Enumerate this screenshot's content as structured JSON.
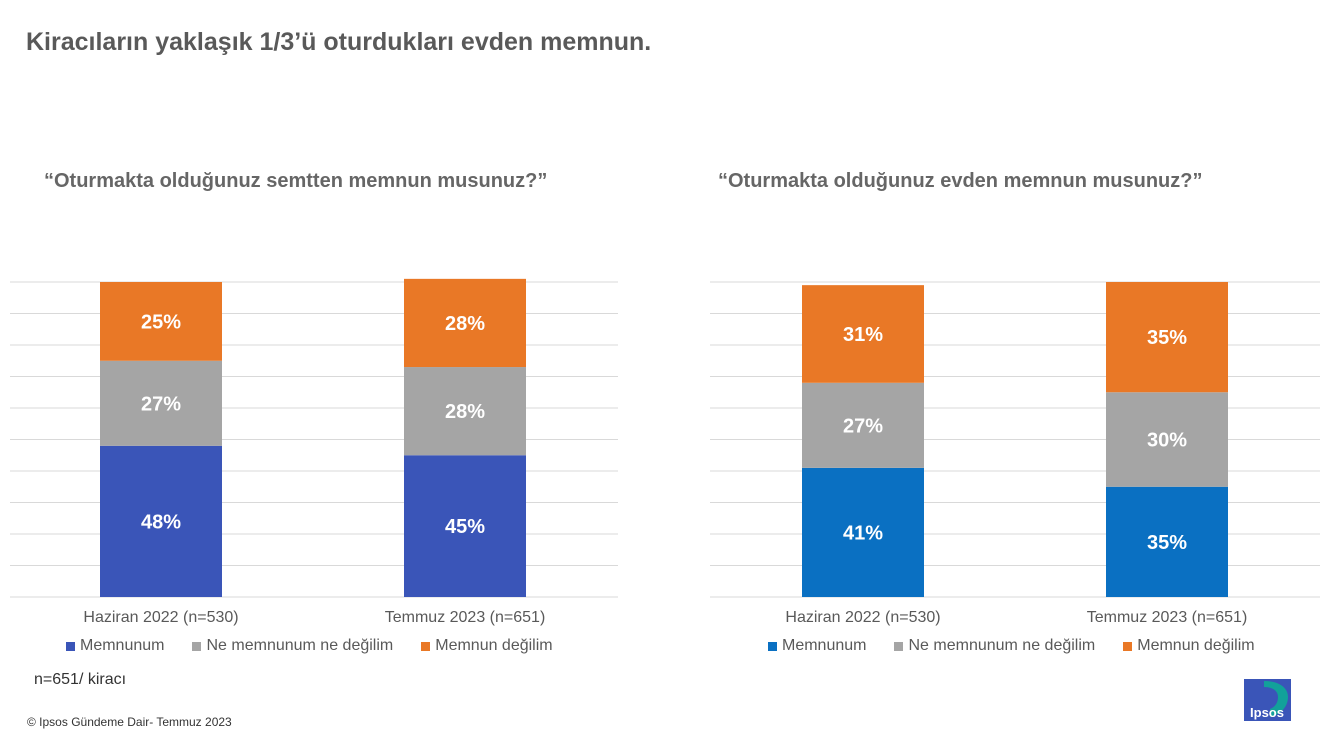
{
  "page": {
    "title": "Kiracıların yaklaşık 1/3’ü oturdukları evden memnun.",
    "note": "n=651/ kiracı",
    "footer": "© Ipsos Gündeme Dair- Temmuz 2023",
    "logo_text": "Ipsos"
  },
  "colors": {
    "memnunum_left": "#3A55B8",
    "memnunum_right": "#0A70C2",
    "neutral": "#A5A5A5",
    "memnun_degil": "#E97826",
    "gridline": "#D9D9D9",
    "logo_dark": "#3A55B8",
    "logo_teal": "#12A19A"
  },
  "chart_data": [
    {
      "type": "bar",
      "stacked": true,
      "title": "“Oturmakta olduğunuz semtten memnun musunuz?”",
      "categories": [
        "Haziran 2022 (n=530)",
        "Temmuz 2023 (n=651)"
      ],
      "ylim": [
        0,
        100
      ],
      "series": [
        {
          "name": "Memnunum",
          "values": [
            48,
            45
          ],
          "labels": [
            "48%",
            "45%"
          ]
        },
        {
          "name": "Ne memnunum ne değilim",
          "values": [
            27,
            28
          ],
          "labels": [
            "27%",
            "28%"
          ]
        },
        {
          "name": "Memnun değilim",
          "values": [
            25,
            28
          ],
          "labels": [
            "25%",
            "28%"
          ]
        }
      ],
      "legend_position": "bottom",
      "grid": true
    },
    {
      "type": "bar",
      "stacked": true,
      "title": "“Oturmakta olduğunuz evden memnun musunuz?”",
      "categories": [
        "Haziran 2022 (n=530)",
        "Temmuz 2023 (n=651)"
      ],
      "ylim": [
        0,
        100
      ],
      "series": [
        {
          "name": "Memnunum",
          "values": [
            41,
            35
          ],
          "labels": [
            "41%",
            "35%"
          ]
        },
        {
          "name": "Ne memnunum ne değilim",
          "values": [
            27,
            30
          ],
          "labels": [
            "27%",
            "30%"
          ]
        },
        {
          "name": "Memnun değilim",
          "values": [
            31,
            35
          ],
          "labels": [
            "31%",
            "35%"
          ]
        }
      ],
      "legend_position": "bottom",
      "grid": true
    }
  ]
}
